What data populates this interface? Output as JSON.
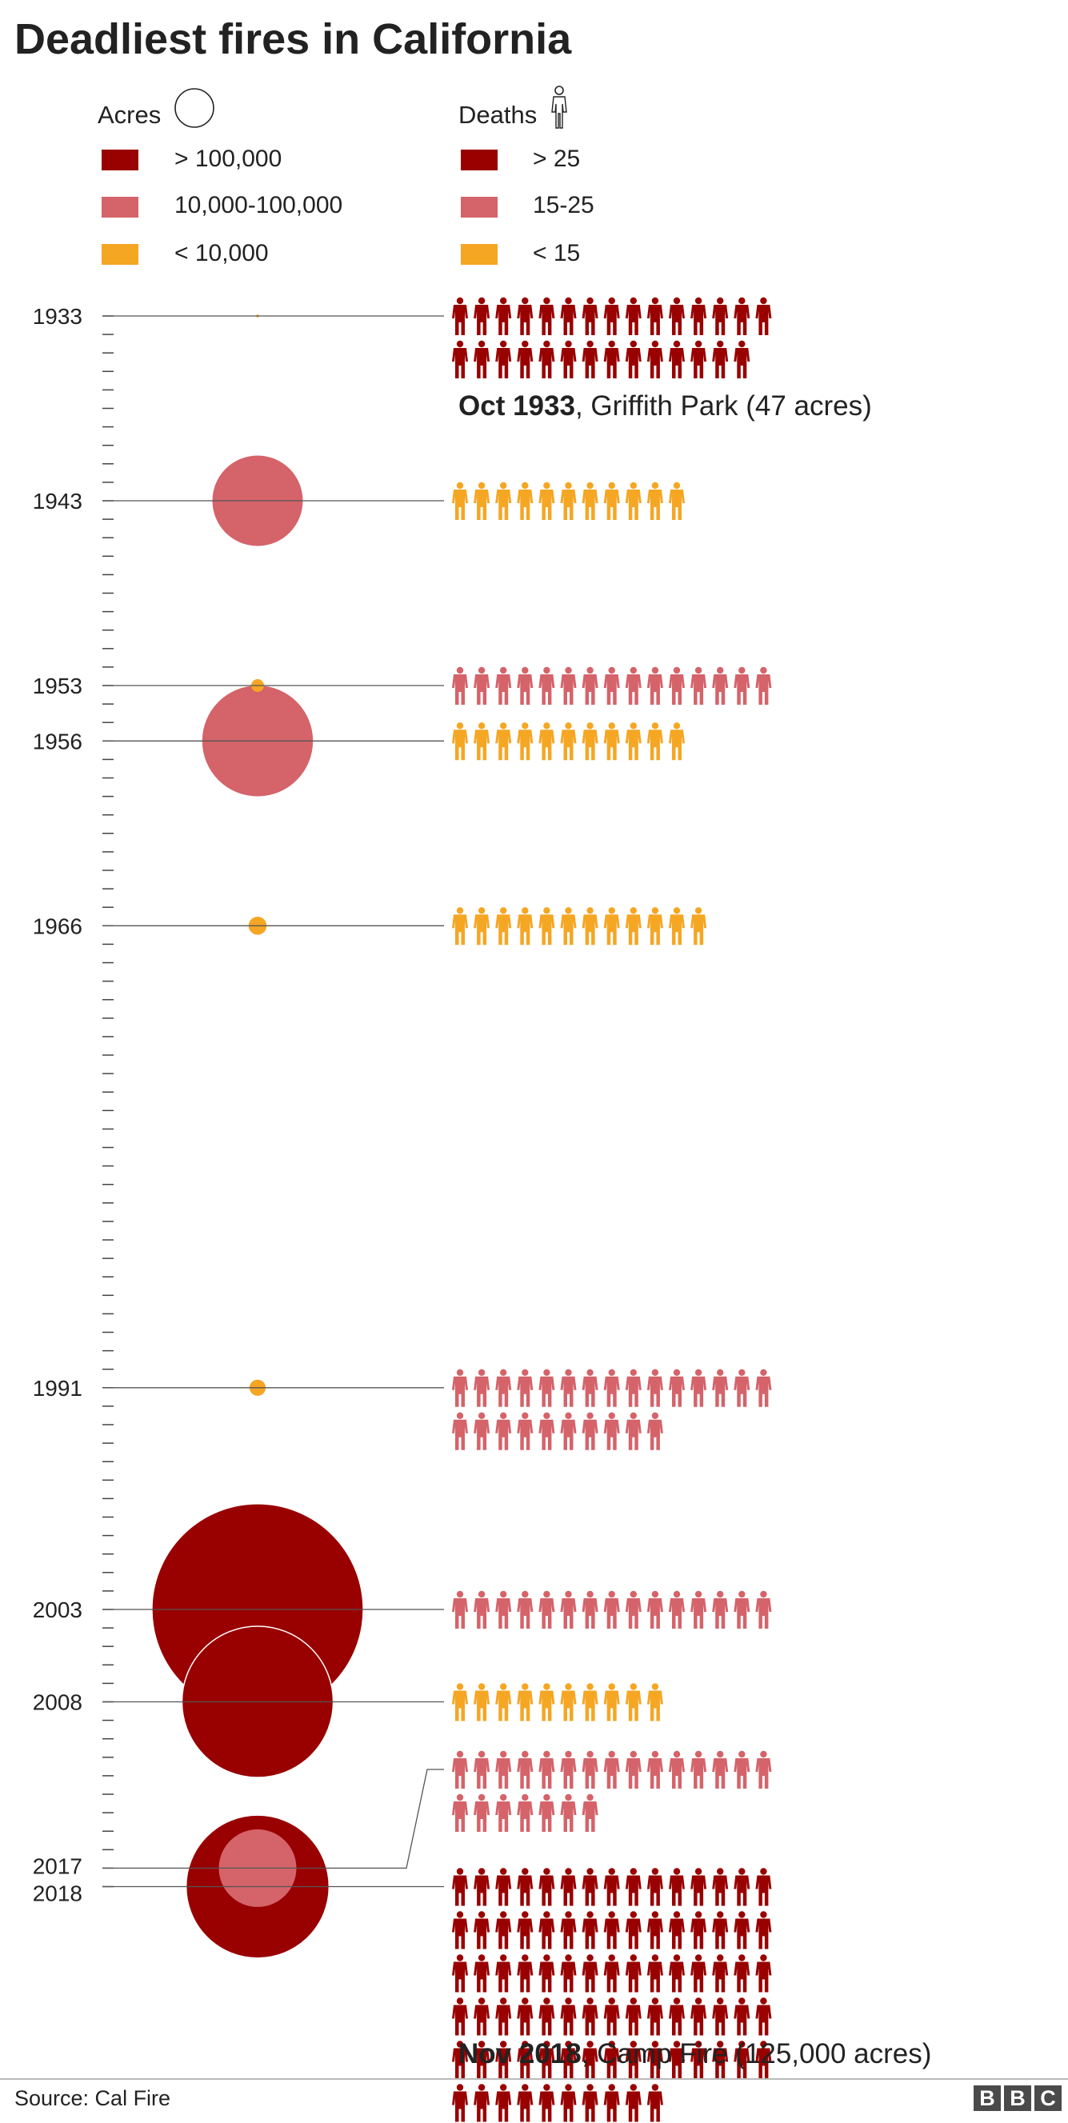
{
  "title": "Deadliest fires in California",
  "legend": {
    "acres_title": "Acres",
    "deaths_title": "Deaths",
    "acres_items": [
      {
        "label": "> 100,000",
        "color": "#990000"
      },
      {
        "label": "10,000-100,000",
        "color": "#d5636a"
      },
      {
        "label": "< 10,000",
        "color": "#f5a623"
      }
    ],
    "deaths_items": [
      {
        "label": "> 25",
        "color": "#990000"
      },
      {
        "label": "15-25",
        "color": "#d5636a"
      },
      {
        "label": "< 15",
        "color": "#f5a623"
      }
    ]
  },
  "colors": {
    "high": "#990000",
    "mid": "#d5636a",
    "low": "#f5a623",
    "line": "#555555"
  },
  "captions": {
    "top": {
      "date": "Oct 1933",
      "rest": ", Griffith Park (47 acres)"
    },
    "bottom": {
      "date": "Nov 2018",
      "rest": ", Camp Fire (125,000 acres)"
    }
  },
  "source": "Source: Cal Fire",
  "logo": "BBC",
  "chart_data": {
    "type": "timeline-bubble-pictogram",
    "year_range": [
      1933,
      2018
    ],
    "fires": [
      {
        "year": 1933,
        "acres": 47,
        "deaths": 29,
        "acres_color": "low",
        "deaths_color": "high"
      },
      {
        "year": 1943,
        "acres": 50000,
        "deaths": 11,
        "acres_color": "mid",
        "deaths_color": "low"
      },
      {
        "year": 1953,
        "acres": 1000,
        "deaths": 15,
        "acres_color": "low",
        "deaths_color": "mid"
      },
      {
        "year": 1956,
        "acres": 75000,
        "deaths": 11,
        "acres_color": "mid",
        "deaths_color": "low"
      },
      {
        "year": 1966,
        "acres": 2000,
        "deaths": 12,
        "acres_color": "low",
        "deaths_color": "low"
      },
      {
        "year": 1991,
        "acres": 1600,
        "deaths": 25,
        "acres_color": "low",
        "deaths_color": "mid"
      },
      {
        "year": 2003,
        "acres": 273246,
        "deaths": 15,
        "acres_color": "high",
        "deaths_color": "mid"
      },
      {
        "year": 2008,
        "acres": 140000,
        "deaths": 10,
        "acres_color": "high",
        "deaths_color": "low"
      },
      {
        "year": 2017,
        "acres": 36807,
        "deaths": 22,
        "acres_color": "mid",
        "deaths_color": "mid"
      },
      {
        "year": 2018,
        "acres": 125000,
        "deaths": 85,
        "acres_color": "high",
        "deaths_color": "high"
      }
    ]
  }
}
